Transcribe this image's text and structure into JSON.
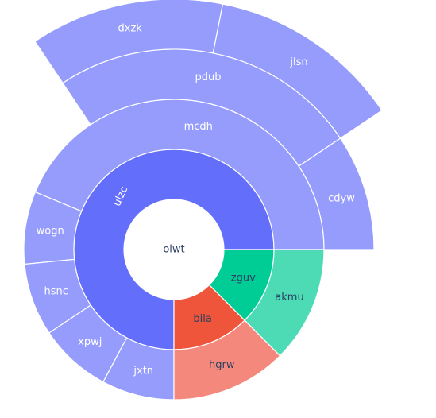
{
  "chart_data": {
    "type": "sunburst",
    "root": "oiwt",
    "center_label": "oiwt",
    "colors": {
      "primary_inner": "#636efa",
      "primary_outer": "#959cfc",
      "red_inner": "#ef553b",
      "red_outer": "#f4887c",
      "green_inner": "#00cc96",
      "green_outer": "#4ddbb6",
      "text_dark": "#2a3f5f",
      "text_light": "#ffffff"
    },
    "nodes": [
      {
        "id": "oiwt",
        "label": "oiwt",
        "parent": "",
        "value": 100
      },
      {
        "id": "ulzc",
        "label": "ulzc",
        "parent": "oiwt",
        "value": 75
      },
      {
        "id": "mcdh",
        "label": "mcdh",
        "parent": "ulzc",
        "value": 43.75
      },
      {
        "id": "cdyw",
        "label": "cdyw",
        "parent": "mcdh",
        "value": 9.375
      },
      {
        "id": "pdub",
        "label": "pdub",
        "parent": "mcdh",
        "value": 25
      },
      {
        "id": "jlsn",
        "label": "jlsn",
        "parent": "pdub",
        "value": 12.5
      },
      {
        "id": "dxzk",
        "label": "dxzk",
        "parent": "pdub",
        "value": 12.5
      },
      {
        "id": "wogn",
        "label": "wogn",
        "parent": "ulzc",
        "value": 7.8125
      },
      {
        "id": "hsnc",
        "label": "hsnc",
        "parent": "ulzc",
        "value": 7.8125
      },
      {
        "id": "xpwj",
        "label": "xpwj",
        "parent": "ulzc",
        "value": 7.8125
      },
      {
        "id": "jxtn",
        "label": "jxtn",
        "parent": "ulzc",
        "value": 7.8125
      },
      {
        "id": "bila",
        "label": "bila",
        "parent": "oiwt",
        "value": 12.5
      },
      {
        "id": "hgrw",
        "label": "hgrw",
        "parent": "bila",
        "value": 12.5
      },
      {
        "id": "zguv",
        "label": "zguv",
        "parent": "oiwt",
        "value": 12.5
      },
      {
        "id": "akmu",
        "label": "akmu",
        "parent": "zguv",
        "value": 12.5
      }
    ]
  }
}
